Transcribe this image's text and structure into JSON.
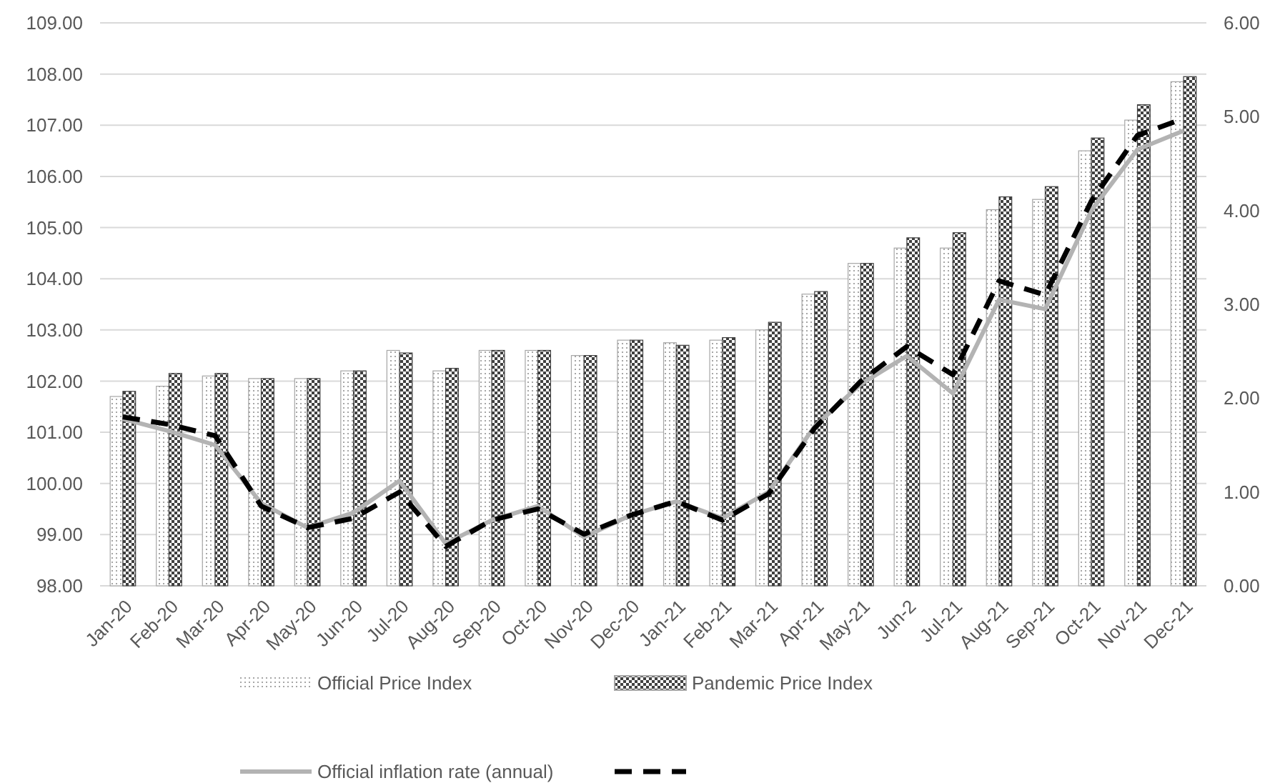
{
  "chart_data": {
    "type": "bar",
    "categories": [
      "Jan-20",
      "Feb-20",
      "Mar-20",
      "Apr-20",
      "May-20",
      "Jun-20",
      "Jul-20",
      "Aug-20",
      "Sep-20",
      "Oct-20",
      "Nov-20",
      "Dec-20",
      "Jan-21",
      "Feb-21",
      "Mar-21",
      "Apr-21",
      "May-21",
      "Jun-2",
      "Jul-21",
      "Aug-21",
      "Sep-21",
      "Oct-21",
      "Nov-21",
      "Dec-21"
    ],
    "series": [
      {
        "name": "Official Price Index",
        "color": "#a6a6a6",
        "values": [
          101.7,
          101.9,
          102.1,
          102.05,
          102.05,
          102.2,
          102.6,
          102.2,
          102.6,
          102.6,
          102.5,
          102.8,
          102.75,
          102.8,
          103.0,
          103.7,
          104.3,
          104.6,
          104.6,
          105.35,
          105.55,
          106.5,
          107.1,
          107.85
        ]
      },
      {
        "name": "Pandemic Price Index",
        "color": "#404040",
        "values": [
          101.8,
          102.15,
          102.15,
          102.05,
          102.05,
          102.2,
          102.55,
          102.25,
          102.6,
          102.6,
          102.5,
          102.8,
          102.7,
          102.85,
          103.15,
          103.75,
          104.3,
          104.8,
          104.9,
          105.6,
          105.8,
          106.75,
          107.4,
          107.95
        ]
      },
      {
        "name": "Official inflation rate (annual)",
        "type": "line",
        "axis": "y2",
        "color": "#b3b3b3",
        "line_style": "solid",
        "values": [
          1.78,
          1.65,
          1.5,
          0.88,
          0.62,
          0.78,
          1.12,
          0.45,
          0.7,
          0.85,
          0.52,
          0.75,
          0.9,
          0.72,
          1.0,
          1.7,
          2.15,
          2.45,
          2.05,
          3.05,
          2.95,
          4.0,
          4.65,
          4.85
        ]
      },
      {
        "type": "line",
        "axis": "y2",
        "color": "#000000",
        "line_style": "dashed",
        "values": [
          1.8,
          1.72,
          1.6,
          0.85,
          0.62,
          0.72,
          1.0,
          0.42,
          0.7,
          0.82,
          0.55,
          0.75,
          0.9,
          0.7,
          0.98,
          1.68,
          2.18,
          2.55,
          2.25,
          3.25,
          3.1,
          4.1,
          4.8,
          4.98
        ]
      }
    ],
    "ylim": [
      98,
      109
    ],
    "yticks": [
      {
        "value": 98,
        "label": "98.00"
      },
      {
        "value": 99,
        "label": "99.00"
      },
      {
        "value": 100,
        "label": "100.00"
      },
      {
        "value": 101,
        "label": "101.00"
      },
      {
        "value": 102,
        "label": "102.00"
      },
      {
        "value": 103,
        "label": "103.00"
      },
      {
        "value": 104,
        "label": "104.00"
      },
      {
        "value": 105,
        "label": "105.00"
      },
      {
        "value": 106,
        "label": "106.00"
      },
      {
        "value": 107,
        "label": "107.00"
      },
      {
        "value": 108,
        "label": "108.00"
      },
      {
        "value": 109,
        "label": "109.00"
      }
    ],
    "y2lim": [
      0,
      6
    ],
    "y2ticks": [
      {
        "value": 0,
        "label": "0.00"
      },
      {
        "value": 1,
        "label": "1.00"
      },
      {
        "value": 2,
        "label": "2.00"
      },
      {
        "value": 3,
        "label": "3.00"
      },
      {
        "value": 4,
        "label": "4.00"
      },
      {
        "value": 5,
        "label": "5.00"
      },
      {
        "value": 6,
        "label": "6.00"
      }
    ],
    "grid": "y",
    "legend": "bottom",
    "marker": "none"
  }
}
